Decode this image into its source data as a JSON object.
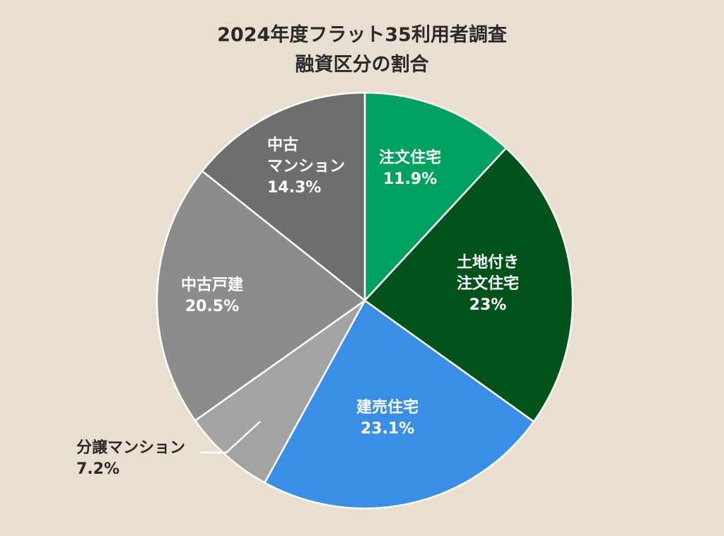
{
  "chart_data": {
    "type": "pie",
    "title_lines": [
      "2024年度フラット35利用者調査",
      "融資区分の割合"
    ],
    "start_angle_deg": 0,
    "direction": "clockwise",
    "slices": [
      {
        "lines": [
          "注文住宅",
          "11.9%"
        ],
        "value": 11.9,
        "color": "#00a060",
        "label_color": "#ffffff",
        "label_inside": true
      },
      {
        "lines": [
          "土地付き",
          "注文住宅",
          "23%"
        ],
        "value": 23,
        "color": "#02521c",
        "label_color": "#ffffff",
        "label_inside": true
      },
      {
        "lines": [
          "建売住宅",
          "23.1%"
        ],
        "value": 23.1,
        "color": "#3a8ee6",
        "label_color": "#ffffff",
        "label_inside": true
      },
      {
        "lines": [
          "分譲マンション",
          "7.2%"
        ],
        "value": 7.2,
        "color": "#a3a3a3",
        "label_color": "#2a2a2a",
        "label_inside": false
      },
      {
        "lines": [
          "中古戸建",
          "20.5%"
        ],
        "value": 20.5,
        "color": "#8c8c8c",
        "label_color": "#ffffff",
        "label_inside": true
      },
      {
        "lines": [
          "中古",
          "マンション",
          "14.3%"
        ],
        "value": 14.3,
        "color": "#6e6e6e",
        "label_color": "#ffffff",
        "label_inside": true
      }
    ],
    "slice_border_color": "#ffffff"
  }
}
